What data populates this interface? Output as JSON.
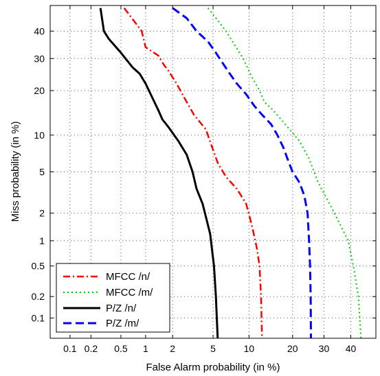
{
  "chart_data": {
    "type": "line",
    "title": "",
    "xlabel": "False Alarm probability (in %)",
    "ylabel": "Miss probability (in %)",
    "x_scale": "probit",
    "y_scale": "probit",
    "xlim": [
      0.05,
      50
    ],
    "ylim": [
      0.05,
      50
    ],
    "x_ticks": [
      0.1,
      0.2,
      0.5,
      1,
      2,
      5,
      10,
      20,
      30,
      40
    ],
    "x_tick_labels": [
      "0.1",
      "0.2",
      "0.5",
      "1",
      "2",
      "5",
      "10",
      "20",
      "30",
      "40"
    ],
    "y_ticks": [
      0.1,
      0.2,
      0.5,
      1,
      2,
      5,
      10,
      20,
      30,
      40
    ],
    "y_tick_labels": [
      "0.1",
      "0.2",
      "0.5",
      "1",
      "2",
      "5",
      "10",
      "20",
      "30",
      "40"
    ],
    "grid": true,
    "legend_position": "bottom-left",
    "series": [
      {
        "name": "MFCC /n/",
        "color": "#ff0000",
        "style": "dashdot",
        "points": [
          [
            0.55,
            49
          ],
          [
            0.9,
            40
          ],
          [
            1.0,
            34
          ],
          [
            1.4,
            31
          ],
          [
            1.6,
            28
          ],
          [
            1.8,
            26
          ],
          [
            2.2,
            22
          ],
          [
            2.8,
            17
          ],
          [
            3.3,
            14
          ],
          [
            4.3,
            11
          ],
          [
            4.8,
            8.5
          ],
          [
            5.5,
            6
          ],
          [
            6.5,
            4.5
          ],
          [
            8.0,
            3.5
          ],
          [
            9.5,
            2.5
          ],
          [
            10.5,
            1.5
          ],
          [
            11.5,
            0.8
          ],
          [
            12.0,
            0.5
          ],
          [
            12.3,
            0.2
          ],
          [
            12.5,
            0.05
          ]
        ]
      },
      {
        "name": "MFCC /m/",
        "color": "#00cc00",
        "style": "dotted",
        "points": [
          [
            4.5,
            49
          ],
          [
            6.5,
            40
          ],
          [
            9.0,
            30
          ],
          [
            10.5,
            24
          ],
          [
            12.0,
            20
          ],
          [
            13.0,
            17
          ],
          [
            15.0,
            15
          ],
          [
            18.0,
            12
          ],
          [
            22.0,
            9
          ],
          [
            25.0,
            6.5
          ],
          [
            28.0,
            4
          ],
          [
            32.0,
            2.5
          ],
          [
            36.0,
            1.5
          ],
          [
            39.0,
            1.0
          ],
          [
            41.0,
            0.5
          ],
          [
            43.0,
            0.2
          ],
          [
            44.0,
            0.05
          ]
        ]
      },
      {
        "name": "P/Z /n/",
        "color": "#000000",
        "style": "solid",
        "points": [
          [
            0.27,
            49
          ],
          [
            0.3,
            40
          ],
          [
            0.35,
            37
          ],
          [
            0.5,
            32
          ],
          [
            0.7,
            27
          ],
          [
            0.85,
            25
          ],
          [
            1.0,
            22
          ],
          [
            1.2,
            18
          ],
          [
            1.4,
            15
          ],
          [
            1.55,
            13
          ],
          [
            1.8,
            11.5
          ],
          [
            2.3,
            9
          ],
          [
            2.8,
            7
          ],
          [
            3.2,
            5
          ],
          [
            3.5,
            3.5
          ],
          [
            4.0,
            2.5
          ],
          [
            4.7,
            1.2
          ],
          [
            5.1,
            0.5
          ],
          [
            5.3,
            0.2
          ],
          [
            5.4,
            0.1
          ],
          [
            5.5,
            0.05
          ]
        ]
      },
      {
        "name": "P/Z /m/",
        "color": "#0000ff",
        "style": "dashed",
        "points": [
          [
            2.0,
            49
          ],
          [
            2.8,
            45
          ],
          [
            3.5,
            40
          ],
          [
            4.5,
            36
          ],
          [
            5.3,
            32
          ],
          [
            6.2,
            28
          ],
          [
            7.0,
            25
          ],
          [
            8.0,
            22
          ],
          [
            9.5,
            19
          ],
          [
            11.0,
            16
          ],
          [
            12.5,
            14
          ],
          [
            14.5,
            12
          ],
          [
            16.0,
            10
          ],
          [
            17.5,
            8
          ],
          [
            19.0,
            6
          ],
          [
            20.0,
            5
          ],
          [
            22.0,
            4
          ],
          [
            23.5,
            3
          ],
          [
            24.5,
            2
          ],
          [
            25.0,
            1
          ],
          [
            25.3,
            0.5
          ],
          [
            25.5,
            0.2
          ],
          [
            25.6,
            0.05
          ]
        ]
      }
    ]
  }
}
